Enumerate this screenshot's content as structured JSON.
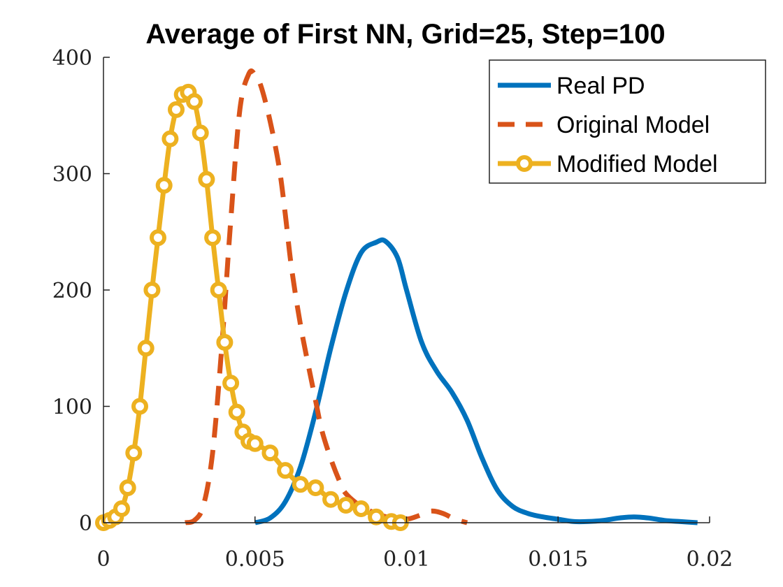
{
  "chart_data": {
    "type": "line",
    "title": "Average of First NN, Grid=25, Step=100",
    "xlabel": "",
    "ylabel": "",
    "xlim": [
      0,
      0.02
    ],
    "ylim": [
      0,
      400
    ],
    "xticks": [
      0,
      0.005,
      0.01,
      0.015,
      0.02
    ],
    "xtick_labels": [
      "0",
      "0.005",
      "0.01",
      "0.015",
      "0.02"
    ],
    "yticks": [
      0,
      100,
      200,
      300,
      400
    ],
    "ytick_labels": [
      "0",
      "100",
      "200",
      "300",
      "400"
    ],
    "grid": false,
    "legend_position": "top-right",
    "series": [
      {
        "name": "Real PD",
        "color": "#0072BD",
        "style": "solid",
        "x": [
          0.005,
          0.0055,
          0.006,
          0.0065,
          0.007,
          0.0075,
          0.008,
          0.0085,
          0.009,
          0.0093,
          0.0097,
          0.01,
          0.0105,
          0.011,
          0.0115,
          0.012,
          0.0125,
          0.013,
          0.0135,
          0.014,
          0.0145,
          0.015,
          0.0155,
          0.016,
          0.0165,
          0.017,
          0.0175,
          0.018,
          0.0185,
          0.019,
          0.0196
        ],
        "y": [
          0,
          4,
          18,
          48,
          95,
          150,
          198,
          232,
          241,
          242,
          228,
          200,
          155,
          130,
          112,
          88,
          55,
          28,
          14,
          8,
          5,
          3,
          1,
          1,
          2,
          4,
          5,
          4,
          2,
          1,
          0
        ]
      },
      {
        "name": "Original Model",
        "color": "#D95319",
        "style": "dashed",
        "x": [
          0.0027,
          0.003,
          0.0033,
          0.0036,
          0.0039,
          0.0042,
          0.0045,
          0.0048,
          0.005,
          0.0052,
          0.0055,
          0.0058,
          0.006,
          0.0062,
          0.0065,
          0.0068,
          0.007,
          0.0072,
          0.0075,
          0.0078,
          0.008,
          0.0085,
          0.009,
          0.0095,
          0.01,
          0.0104,
          0.0108,
          0.0112,
          0.0116,
          0.012
        ],
        "y": [
          0,
          2,
          15,
          60,
          150,
          260,
          355,
          386,
          385,
          375,
          345,
          305,
          265,
          220,
          170,
          130,
          105,
          80,
          55,
          35,
          25,
          14,
          8,
          4,
          3,
          6,
          10,
          8,
          3,
          0
        ]
      },
      {
        "name": "Modified Model",
        "color": "#EDB120",
        "style": "solid-circles",
        "x": [
          0,
          0.0002,
          0.0004,
          0.0006,
          0.0008,
          0.001,
          0.0012,
          0.0014,
          0.0016,
          0.0018,
          0.002,
          0.0022,
          0.0024,
          0.0026,
          0.0028,
          0.003,
          0.0032,
          0.0034,
          0.0036,
          0.0038,
          0.004,
          0.0042,
          0.0044,
          0.0046,
          0.0048,
          0.005,
          0.0055,
          0.006,
          0.0065,
          0.007,
          0.0075,
          0.008,
          0.0085,
          0.009,
          0.0095,
          0.0098
        ],
        "y": [
          0,
          2,
          5,
          12,
          30,
          60,
          100,
          150,
          200,
          245,
          290,
          330,
          355,
          368,
          370,
          362,
          335,
          295,
          245,
          200,
          155,
          120,
          95,
          78,
          70,
          68,
          60,
          45,
          33,
          30,
          20,
          15,
          12,
          5,
          1,
          0
        ]
      }
    ]
  }
}
